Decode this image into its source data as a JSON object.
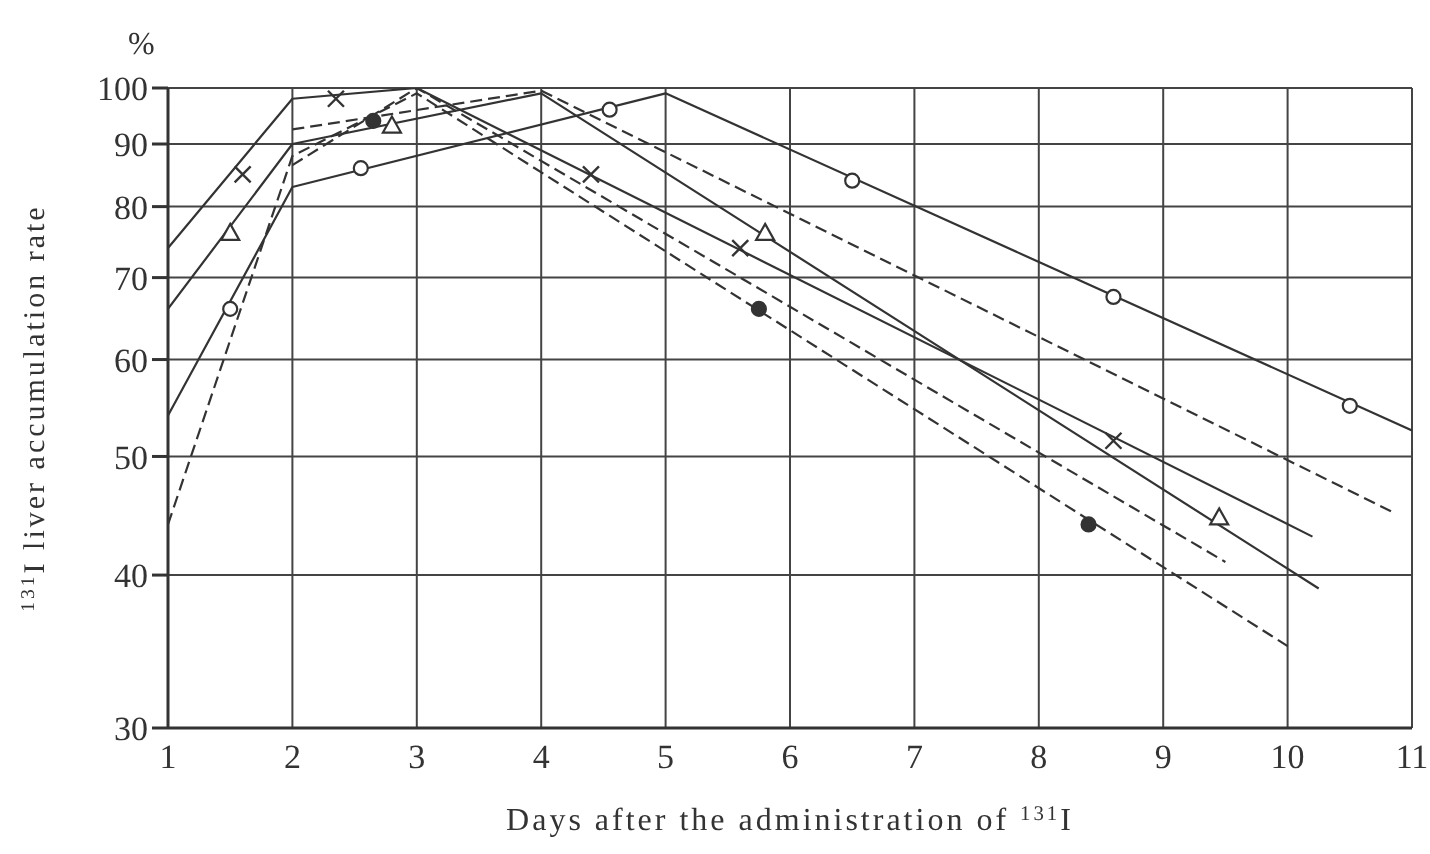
{
  "chart_data": {
    "type": "line",
    "xlabel": "Days after the administration of $^{131}$I",
    "ylabel": "$^{131}$I liver accumulation rate",
    "annotations": [
      "%"
    ],
    "log": "y",
    "grid": true,
    "xlim": [
      1,
      11
    ],
    "xticks": [
      1,
      2,
      3,
      4,
      5,
      6,
      7,
      8,
      9,
      10,
      11
    ],
    "ylim": [
      30,
      100
    ],
    "yticks": [
      30,
      40,
      50,
      60,
      70,
      80,
      90,
      100
    ],
    "series": [
      {
        "color": "#333333",
        "line_style": "solid",
        "marker": "none",
        "x": [
          1,
          2,
          3,
          10.2
        ],
        "values": [
          74,
          98,
          100,
          43
        ]
      },
      {
        "color": "#333333",
        "line_style": "solid",
        "marker": "none",
        "x": [
          1,
          2,
          4,
          10.25
        ],
        "values": [
          66,
          90,
          99,
          39
        ]
      },
      {
        "color": "#333333",
        "line_style": "solid",
        "marker": "none",
        "x": [
          1,
          2,
          5,
          11
        ],
        "values": [
          54,
          83,
          99,
          52.5
        ]
      },
      {
        "color": "#333333",
        "line_style": "dashed",
        "marker": "none",
        "x": [
          1,
          2,
          3,
          10
        ],
        "values": [
          44,
          88,
          99,
          35
        ]
      },
      {
        "color": "#333333",
        "line_style": "dashed",
        "marker": "none",
        "x": [
          2,
          4,
          10.85
        ],
        "values": [
          92.5,
          99.5,
          45
        ]
      },
      {
        "color": "#333333",
        "line_style": "dashed",
        "marker": "none",
        "x": [
          2,
          3,
          9.5
        ],
        "values": [
          86.5,
          100,
          41
        ]
      },
      {
        "type": "scatter",
        "color": "#333333",
        "marker": "cross",
        "x": [
          1.6,
          2.35,
          4.4,
          5.6,
          8.6
        ],
        "values": [
          85,
          98,
          85,
          74,
          51.5
        ]
      },
      {
        "type": "scatter",
        "color": "#ffffff",
        "marker": "triangle",
        "x": [
          1.5,
          2.8,
          5.8,
          9.45
        ],
        "values": [
          76,
          93,
          76,
          44.5
        ]
      },
      {
        "type": "scatter",
        "color": "#ffffff",
        "marker": "circle",
        "x": [
          1.5,
          2.55,
          4.55,
          6.5,
          8.6,
          10.5
        ],
        "values": [
          66,
          86,
          96,
          84,
          67.5,
          55
        ]
      },
      {
        "type": "scatter",
        "color": "#333333",
        "marker": "circle",
        "x": [
          2.65,
          5.75,
          8.4
        ],
        "values": [
          94,
          66,
          44
        ]
      }
    ]
  }
}
